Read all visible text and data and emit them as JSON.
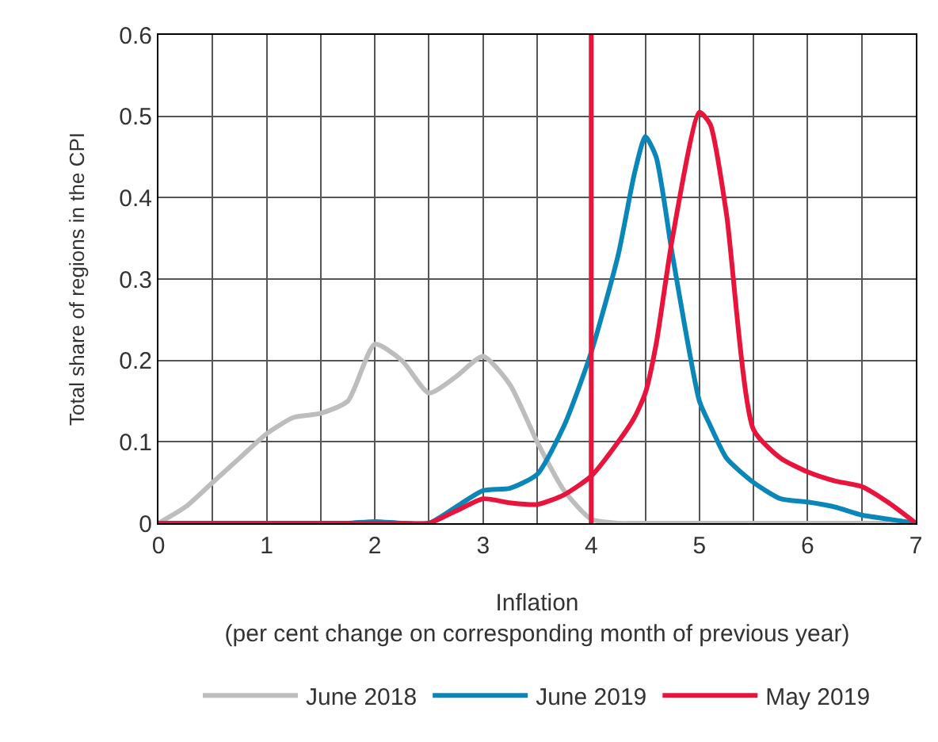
{
  "chart_data": {
    "type": "line",
    "xlabel": "Inflation\n(per cent change on corresponding month of previous year)",
    "ylabel": "Total share of regions in the CPI",
    "x": [
      0,
      0.25,
      0.5,
      0.75,
      1,
      1.25,
      1.5,
      1.75,
      2,
      2.25,
      2.5,
      2.75,
      3,
      3.25,
      3.5,
      3.75,
      4,
      4.25,
      4.4,
      4.5,
      4.6,
      4.75,
      5,
      5.1,
      5.25,
      5.5,
      5.75,
      6,
      6.25,
      6.5,
      6.75,
      7
    ],
    "series": [
      {
        "name": "June 2018",
        "color": "#bdbdbd",
        "values": [
          0,
          0.02,
          0.05,
          0.08,
          0.11,
          0.13,
          0.135,
          0.15,
          0.22,
          0.2,
          0.16,
          0.18,
          0.205,
          0.17,
          0.1,
          0.04,
          0.005,
          0,
          0,
          0,
          0,
          0,
          0,
          0,
          0,
          0,
          0,
          0,
          0,
          0,
          0,
          0
        ]
      },
      {
        "name": "June 2019",
        "color": "#0a86b8",
        "values": [
          null,
          null,
          null,
          null,
          null,
          null,
          0,
          0,
          0.002,
          0,
          0,
          0.02,
          0.04,
          0.043,
          0.06,
          0.12,
          0.21,
          0.33,
          0.43,
          0.475,
          0.45,
          0.33,
          0.15,
          0.12,
          0.08,
          0.05,
          0.03,
          0.026,
          0.02,
          0.01,
          0.005,
          0
        ]
      },
      {
        "name": "May 2019",
        "color": "#e8143c",
        "values": [
          0,
          0,
          0,
          0,
          0,
          0,
          0,
          0,
          0,
          0,
          0,
          0.015,
          0.03,
          0.025,
          0.023,
          0.035,
          0.058,
          0.1,
          0.13,
          0.16,
          0.22,
          0.35,
          0.505,
          0.49,
          0.38,
          0.115,
          0.08,
          0.063,
          0.052,
          0.045,
          0.025,
          0
        ]
      }
    ],
    "xlim": [
      0,
      7
    ],
    "ylim": [
      0,
      0.6
    ],
    "xticks": [
      0,
      {
        "value": 0.5,
        "label": null
      },
      1,
      {
        "value": 1.5,
        "label": null
      },
      2,
      {
        "value": 2.5,
        "label": null
      },
      3,
      {
        "value": 3.5,
        "label": null
      },
      4,
      {
        "value": 4.5,
        "label": null
      },
      5,
      {
        "value": 5.5,
        "label": null
      },
      6,
      {
        "value": 6.5,
        "label": null
      },
      7
    ],
    "yticks": [
      0,
      0.1,
      0.2,
      0.3,
      0.4,
      0.5,
      0.6
    ],
    "ref_lines": [
      {
        "axis": "x",
        "value": 4,
        "color": "#e8143c"
      }
    ],
    "grid": true,
    "legend": "bottom",
    "marker": "none",
    "line_style": "solid"
  }
}
